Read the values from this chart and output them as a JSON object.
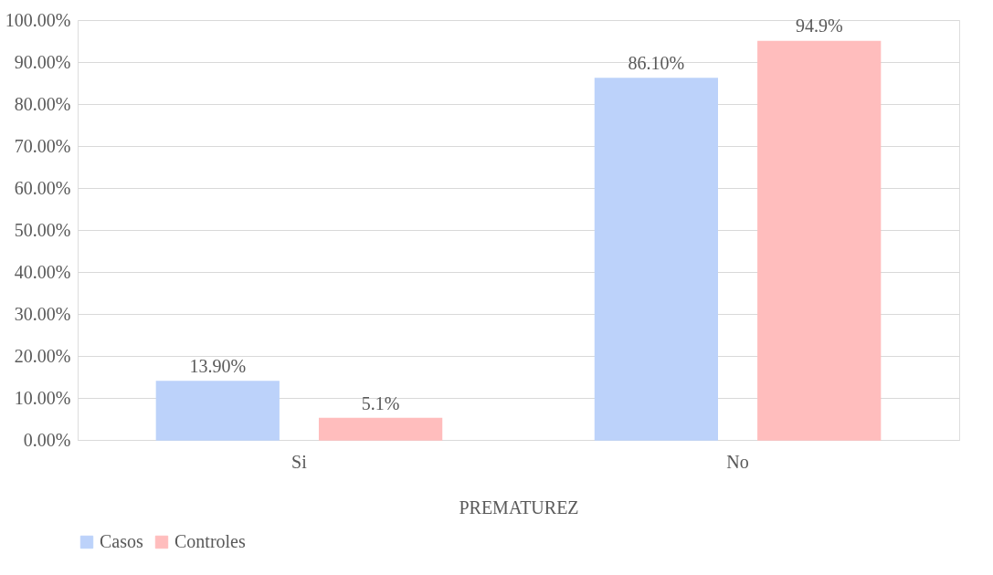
{
  "chart_data": {
    "type": "bar",
    "xlabel": "PREMATUREZ",
    "categories": [
      "Si",
      "No"
    ],
    "series": [
      {
        "name": "Casos",
        "color": "#bcd2fa",
        "values": [
          13.9,
          86.1
        ],
        "value_labels": [
          "13.90%",
          "86.10%"
        ]
      },
      {
        "name": "Controles",
        "color": "#ffbdbd",
        "values": [
          5.1,
          94.9
        ],
        "value_labels": [
          "5.1%",
          "94.9%"
        ]
      }
    ],
    "ylim": [
      0,
      100
    ],
    "yticks": [
      {
        "value": 0,
        "label": "0.00%"
      },
      {
        "value": 10,
        "label": "10.00%"
      },
      {
        "value": 20,
        "label": "20.00%"
      },
      {
        "value": 30,
        "label": "30.00%"
      },
      {
        "value": 40,
        "label": "40.00%"
      },
      {
        "value": 50,
        "label": "50.00%"
      },
      {
        "value": 60,
        "label": "60.00%"
      },
      {
        "value": 70,
        "label": "70.00%"
      },
      {
        "value": 80,
        "label": "80.00%"
      },
      {
        "value": 90,
        "label": "90.00%"
      },
      {
        "value": 100,
        "label": "100.00%"
      }
    ],
    "grid": "y",
    "legend": "bottom"
  }
}
